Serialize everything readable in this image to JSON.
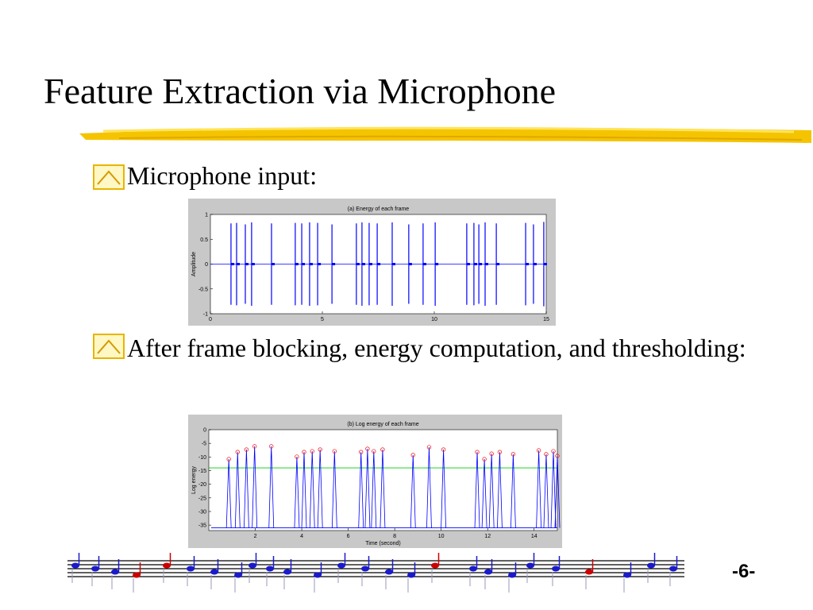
{
  "slide": {
    "title": "Feature Extraction via Microphone",
    "bullets": [
      "Microphone input:",
      "After frame blocking, energy computation, and thresholding:"
    ],
    "page_number": "-6-"
  },
  "chart_data": [
    {
      "type": "waveform",
      "title": "(a) Energy of each frame",
      "y_label": "Amplitude",
      "color": "#0000ff",
      "x": [
        0.92,
        1.17,
        1.56,
        1.84,
        2.73,
        3.79,
        4.08,
        4.43,
        4.79,
        5.43,
        6.52,
        6.77,
        7.09,
        7.45,
        8.12,
        8.86,
        9.5,
        10.04,
        11.45,
        11.77,
        11.99,
        12.27,
        12.77,
        14.08,
        14.43,
        14.89
      ],
      "values": [
        0.82,
        0.83,
        0.8,
        0.84,
        0.82,
        0.83,
        0.82,
        0.84,
        0.83,
        0.8,
        0.82,
        0.84,
        0.83,
        0.82,
        0.84,
        0.8,
        0.82,
        0.84,
        0.82,
        0.83,
        0.8,
        0.84,
        0.82,
        0.83,
        0.8,
        0.85
      ],
      "xlim": [
        0,
        15
      ],
      "xticks": [
        0,
        5,
        10,
        15
      ],
      "ylim": [
        -1,
        1
      ],
      "yticks": [
        -1,
        -0.5,
        0,
        0.5,
        1
      ]
    },
    {
      "type": "line",
      "title": "(b) Log energy of each frame",
      "x_label": "Time (second)",
      "y_label": "Log energy",
      "color": "#0000ff",
      "marker_color": "#ff0000",
      "threshold": -14,
      "threshold_color": "#00cc00",
      "baseline": -36,
      "x": [
        0.86,
        1.24,
        1.62,
        1.97,
        2.69,
        3.79,
        4.1,
        4.45,
        4.79,
        5.41,
        6.55,
        6.83,
        7.1,
        7.48,
        8.79,
        9.48,
        10.1,
        11.55,
        11.86,
        12.17,
        12.52,
        13.1,
        14.2,
        14.52,
        14.83,
        15.0
      ],
      "values": [
        -10.8,
        -8.2,
        -7.3,
        -6.1,
        -6.1,
        -9.9,
        -8.2,
        -7.9,
        -7.3,
        -7.9,
        -8.2,
        -7.0,
        -7.9,
        -7.3,
        -9.3,
        -6.4,
        -7.3,
        -8.2,
        -10.8,
        -8.8,
        -8.2,
        -9.0,
        -7.6,
        -9.0,
        -7.9,
        -9.6
      ],
      "xlim": [
        0,
        15
      ],
      "xticks": [
        2,
        4,
        6,
        8,
        10,
        12,
        14
      ],
      "ylim": [
        -37,
        0
      ],
      "yticks": [
        0,
        -5,
        -10,
        -15,
        -20,
        -25,
        -30,
        -35
      ]
    }
  ]
}
